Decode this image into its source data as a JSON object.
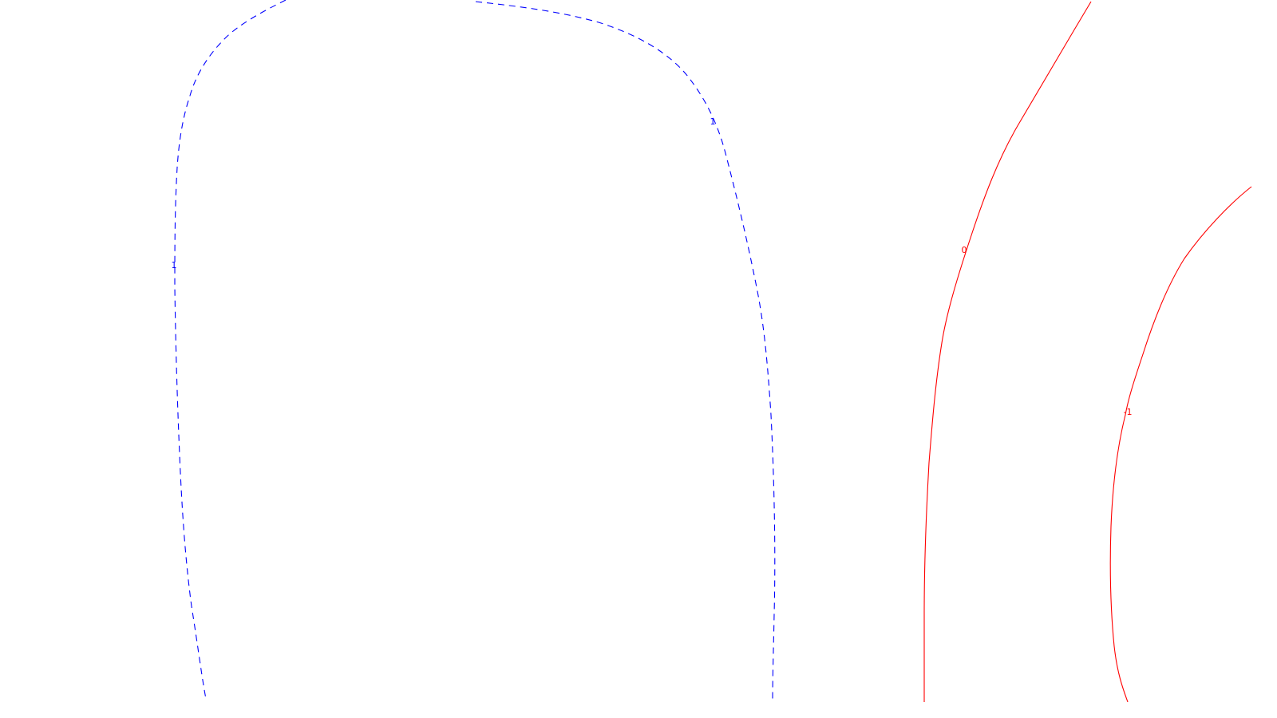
{
  "chart_data": {
    "type": "contour",
    "title": "",
    "xlabel": "",
    "ylabel": "",
    "axes_visible": false,
    "grid": false,
    "legend": "none",
    "contours": [
      {
        "level": 1,
        "label": "1",
        "color": "#0000ff",
        "style": "dashed"
      },
      {
        "level": 0,
        "label": "0",
        "color": "#ff0000",
        "style": "solid"
      },
      {
        "level": -1,
        "label": "-1",
        "color": "#ff0000",
        "style": "solid"
      }
    ]
  }
}
